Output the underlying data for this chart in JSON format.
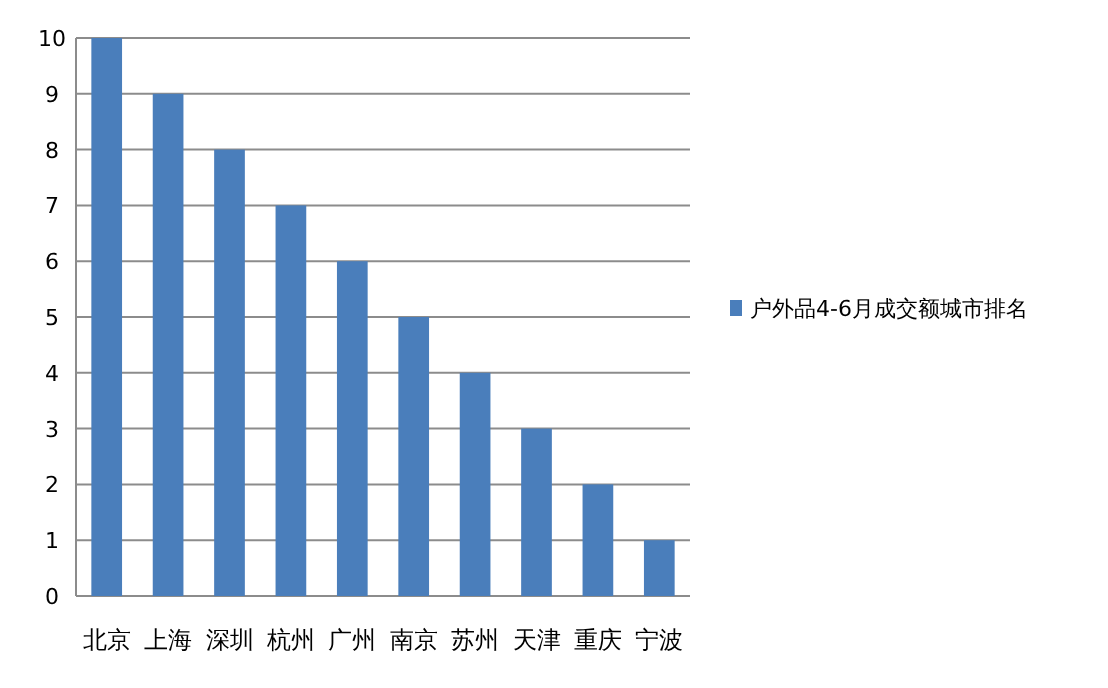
{
  "chart_data": {
    "type": "bar",
    "categories": [
      "北京",
      "上海",
      "深圳",
      "杭州",
      "广州",
      "南京",
      "苏州",
      "天津",
      "重庆",
      "宁波"
    ],
    "series": [
      {
        "name": "户外品4-6月成交额城市排名",
        "color": "#4a7ebb",
        "values": [
          10,
          9,
          8,
          7,
          6,
          5,
          4,
          3,
          2,
          1
        ]
      }
    ],
    "ylim": [
      0,
      10
    ],
    "yticks": [
      0,
      1,
      2,
      3,
      4,
      5,
      6,
      7,
      8,
      9,
      10
    ],
    "grid": "y",
    "legend": "right"
  }
}
